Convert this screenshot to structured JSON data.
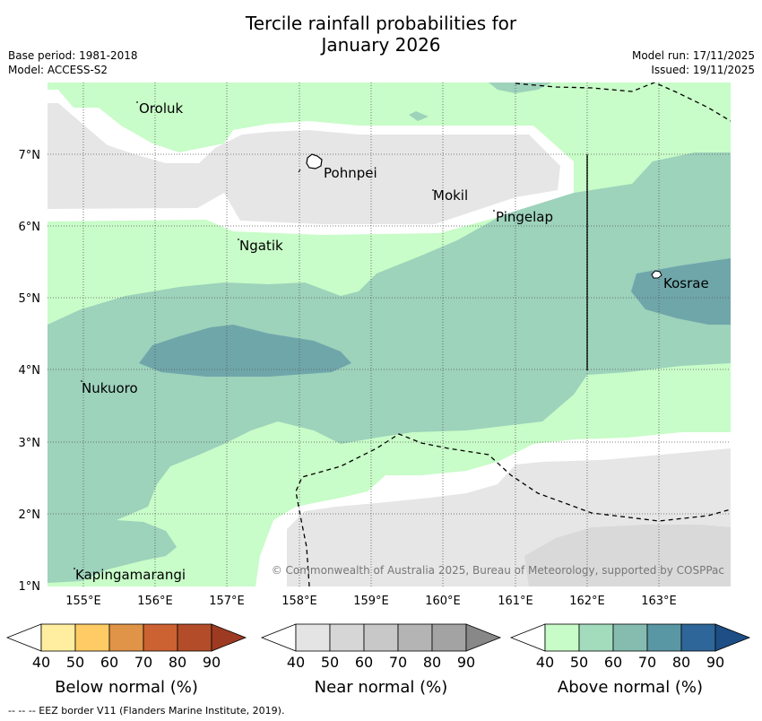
{
  "title_line1": "Tercile rainfall probabilities for",
  "title_line2": "January 2026",
  "meta": {
    "base_period": "Base period: 1981-2018",
    "model": "Model: ACCESS-S2",
    "model_run": "Model run: 17/11/2025",
    "issued": "Issued: 19/11/2025"
  },
  "map": {
    "lon_labels": [
      "155°E",
      "156°E",
      "157°E",
      "158°E",
      "159°E",
      "160°E",
      "161°E",
      "162°E",
      "163°E"
    ],
    "lat_labels": [
      "7°N",
      "6°N",
      "5°N",
      "4°N",
      "3°N",
      "2°N",
      "1°N"
    ],
    "places": [
      "Oroluk",
      "Pohnpei",
      "Mokil",
      "Pingelap",
      "Ngatik",
      "Kosrae",
      "Nukuoro",
      "Kapingamarangi"
    ],
    "copyright": "© Commonwealth of Australia 2025, Bureau of Meteorology, supported by COSPPac"
  },
  "legends": [
    {
      "name": "Below normal (%)",
      "colors": [
        "#ffeea0",
        "#fecb65",
        "#e09448",
        "#cc6232",
        "#b34d29",
        "#9d3a21"
      ]
    },
    {
      "name": "Near normal (%)",
      "colors": [
        "#e4e4e4",
        "#d6d6d6",
        "#c8c8c8",
        "#b4b4b4",
        "#a3a3a3",
        "#888888"
      ]
    },
    {
      "name": "Above normal (%)",
      "colors": [
        "#c7fbc7",
        "#a3dcbd",
        "#86bcb0",
        "#5a97a5",
        "#2f6699",
        "#1d4e85"
      ]
    }
  ],
  "legend_ticks": [
    "40",
    "50",
    "60",
    "70",
    "80",
    "90"
  ],
  "footer": "--  --  -- EEZ border V11 (Flanders Marine Institute, 2019).",
  "colors": {
    "above_50": "#c8fcc8",
    "above_60": "#9dd2bb",
    "above_70": "#6fa6aa",
    "near_50": "#e6e6e6",
    "near_60": "#d9d9d9"
  }
}
